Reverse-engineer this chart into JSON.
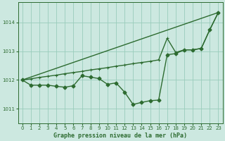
{
  "title": "Graphe pression niveau de la mer (hPa)",
  "background_color": "#cce8e0",
  "grid_color": "#99ccbb",
  "line_color": "#2d6b30",
  "xlim": [
    -0.5,
    23.5
  ],
  "ylim": [
    1010.5,
    1014.7
  ],
  "yticks": [
    1011,
    1012,
    1013,
    1014
  ],
  "xticks": [
    0,
    1,
    2,
    3,
    4,
    5,
    6,
    7,
    8,
    9,
    10,
    11,
    12,
    13,
    14,
    15,
    16,
    17,
    18,
    19,
    20,
    21,
    22,
    23
  ],
  "series1_x": [
    0,
    1,
    2,
    3,
    4,
    5,
    6,
    7,
    8,
    9,
    10,
    11,
    12,
    13,
    14,
    15,
    16,
    17,
    18,
    19,
    20,
    21,
    22,
    23
  ],
  "series1_y": [
    1012.0,
    1011.82,
    1011.82,
    1011.82,
    1011.78,
    1011.75,
    1011.8,
    1012.15,
    1012.1,
    1012.05,
    1011.85,
    1011.9,
    1011.58,
    1011.15,
    1011.22,
    1011.28,
    1011.3,
    1012.88,
    1012.92,
    1013.05,
    1013.05,
    1013.1,
    1013.75,
    1014.35
  ],
  "series2_x": [
    0,
    1,
    2,
    3,
    4,
    5,
    6,
    7,
    8,
    9,
    10,
    11,
    12,
    13,
    14,
    15,
    16,
    17,
    18,
    19,
    20,
    21,
    22,
    23
  ],
  "series2_y": [
    1012.0,
    1012.04,
    1012.09,
    1012.13,
    1012.17,
    1012.22,
    1012.26,
    1012.3,
    1012.35,
    1012.39,
    1012.43,
    1012.48,
    1012.52,
    1012.57,
    1012.61,
    1012.65,
    1012.7,
    1013.45,
    1012.96,
    1013.05,
    1013.05,
    1013.1,
    1013.75,
    1014.35
  ],
  "series3_x": [
    0,
    23
  ],
  "series3_y": [
    1012.0,
    1014.35
  ]
}
